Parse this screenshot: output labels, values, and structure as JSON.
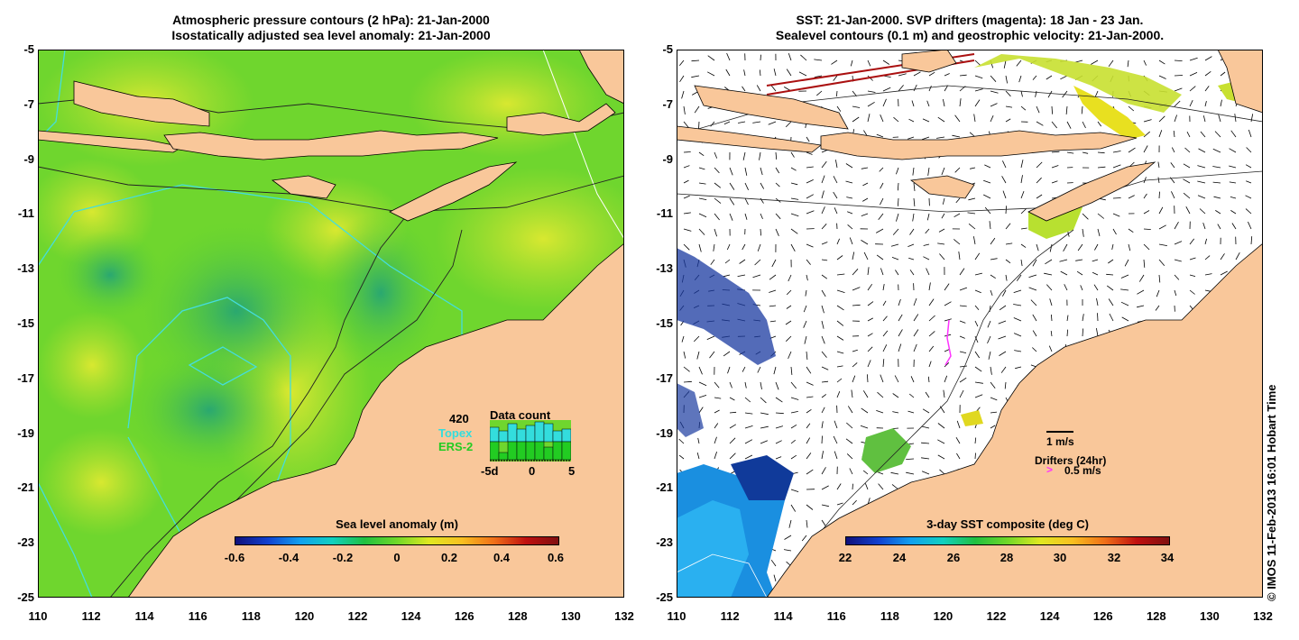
{
  "left_panel": {
    "title_line1": "Atmospheric pressure contours (2 hPa): 21-Jan-2000",
    "title_line2": "Isostatically adjusted sea level anomaly: 21-Jan-2000",
    "legend": {
      "title": "Sea level anomaly (m)",
      "ticks": [
        "-0.6",
        "-0.4",
        "-0.2",
        "0",
        "0.2",
        "0.4",
        "0.6"
      ]
    },
    "data_count": {
      "title": "Data count",
      "count": "420",
      "topex_label": "Topex",
      "ers2_label": "ERS-2",
      "axis_left": "-5d",
      "axis_mid": "0",
      "axis_right": "5",
      "topex_color": "#33dddd",
      "ers2_color": "#22cc22"
    }
  },
  "right_panel": {
    "title_line1": "SST: 21-Jan-2000. SVP drifters (magenta): 18 Jan - 23 Jan.",
    "title_line2": "Sealevel contours (0.1 m) and geostrophic velocity: 21-Jan-2000.",
    "legend": {
      "title": "3-day SST composite (deg C)",
      "ticks": [
        "22",
        "24",
        "26",
        "28",
        "30",
        "32",
        "34"
      ]
    },
    "velocity_scale_label": "1 m/s",
    "drifters_label": "Drifters (24hr)",
    "drifter_speed_label": "0.5 m/s",
    "drifter_color": "#ff33ff"
  },
  "axes": {
    "y_ticks": [
      "-5",
      "-7",
      "-9",
      "-11",
      "-13",
      "-15",
      "-17",
      "-19",
      "-21",
      "-23",
      "-25"
    ],
    "x_ticks": [
      "110",
      "112",
      "114",
      "116",
      "118",
      "120",
      "122",
      "124",
      "126",
      "128",
      "130",
      "132"
    ]
  },
  "colors": {
    "land": "#f9c79a",
    "ocean_anomaly_base": "#5fd230",
    "ocean_white": "#ffffff"
  },
  "credit": "© IMOS 11-Feb-2013 16:01 Hobart Time"
}
